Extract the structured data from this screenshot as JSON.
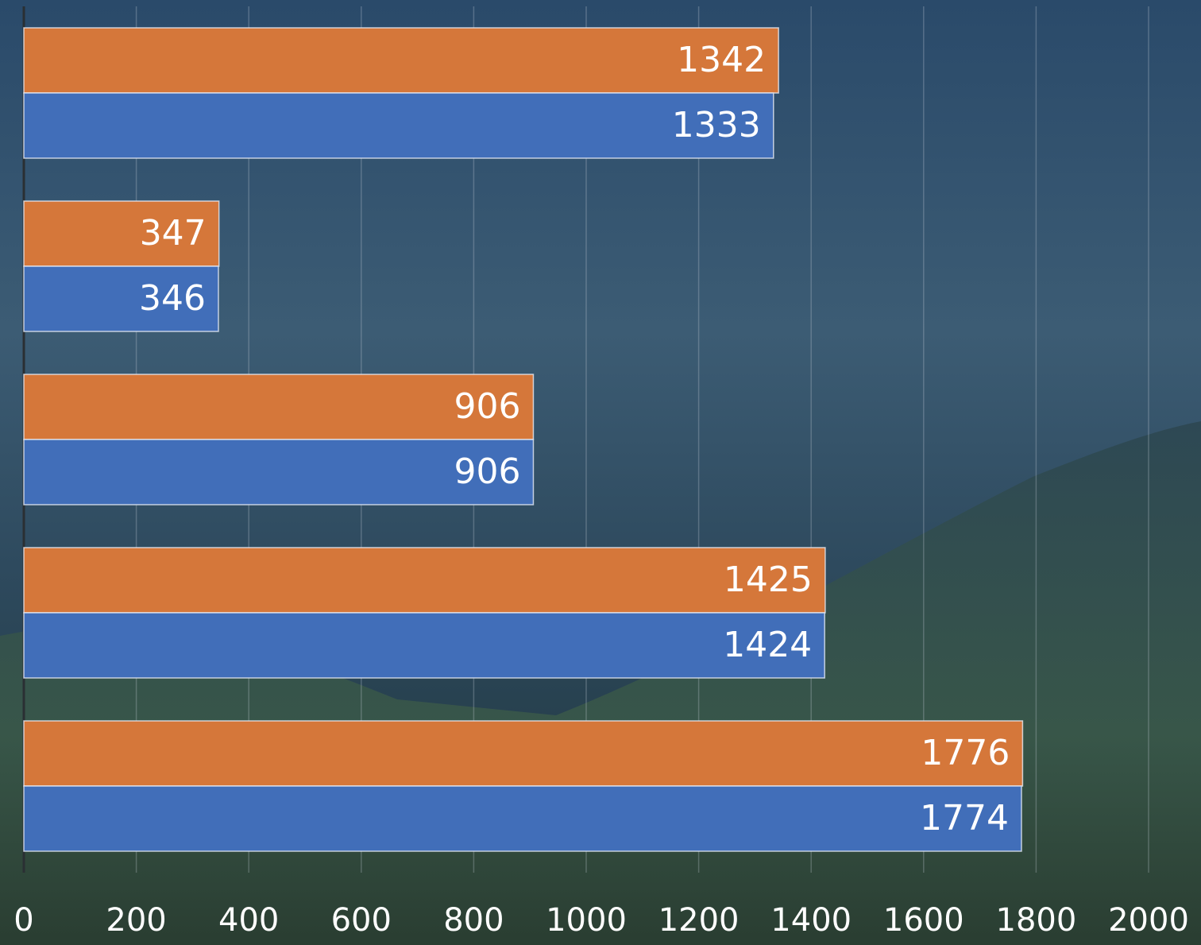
{
  "chart_data": {
    "type": "barh",
    "categories": [
      null,
      null,
      null,
      null,
      null
    ],
    "series": [
      {
        "color": "#d5773a",
        "values": [
          1342,
          347,
          906,
          1425,
          1776
        ]
      },
      {
        "color": "#416eb9",
        "values": [
          1333,
          346,
          906,
          1424,
          1774
        ]
      }
    ],
    "xlim": [
      0,
      2000
    ],
    "xticks": [
      0,
      200,
      400,
      600,
      800,
      1000,
      1200,
      1400,
      1600,
      1800,
      2000
    ],
    "grid": true,
    "data_labels": true
  }
}
